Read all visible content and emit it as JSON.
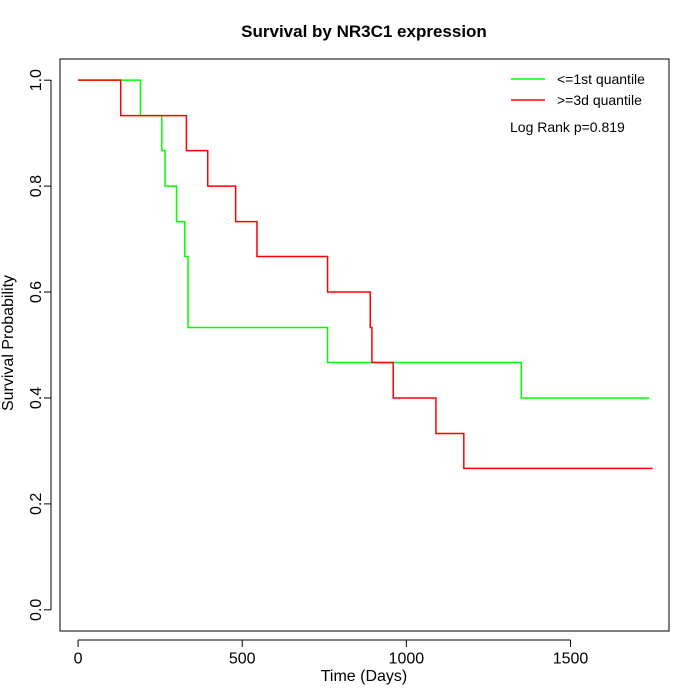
{
  "chart_data": {
    "type": "line",
    "title": "Survival by NR3C1 expression",
    "xlabel": "Time (Days)",
    "ylabel": "Survival Probability",
    "xlim": [
      -55,
      1800
    ],
    "ylim": [
      -0.04,
      1.04
    ],
    "x_ticks": [
      0,
      500,
      1000,
      1500
    ],
    "x_tick_labels": [
      "0",
      "500",
      "1000",
      "1500"
    ],
    "y_ticks": [
      0.0,
      0.2,
      0.4,
      0.6,
      0.8,
      1.0
    ],
    "y_tick_labels": [
      "0.0",
      "0.2",
      "0.4",
      "0.6",
      "0.8",
      "1.0"
    ],
    "grid": false,
    "legend_position": "top-right",
    "annotation": "Log Rank p=0.819",
    "series": [
      {
        "name": "<=1st quantile",
        "color": "#00ff00",
        "step": true,
        "x": [
          0,
          190,
          255,
          265,
          300,
          325,
          335,
          760,
          1350,
          1740
        ],
        "y": [
          1.0,
          0.933,
          0.867,
          0.8,
          0.733,
          0.667,
          0.533,
          0.467,
          0.4,
          0.4
        ]
      },
      {
        "name": ">=3d quantile",
        "color": "#ff0000",
        "step": true,
        "x": [
          0,
          130,
          330,
          395,
          480,
          545,
          760,
          890,
          895,
          960,
          1090,
          1175,
          1750
        ],
        "y": [
          1.0,
          0.933,
          0.867,
          0.8,
          0.733,
          0.667,
          0.6,
          0.533,
          0.467,
          0.4,
          0.333,
          0.267,
          0.267
        ]
      }
    ]
  }
}
